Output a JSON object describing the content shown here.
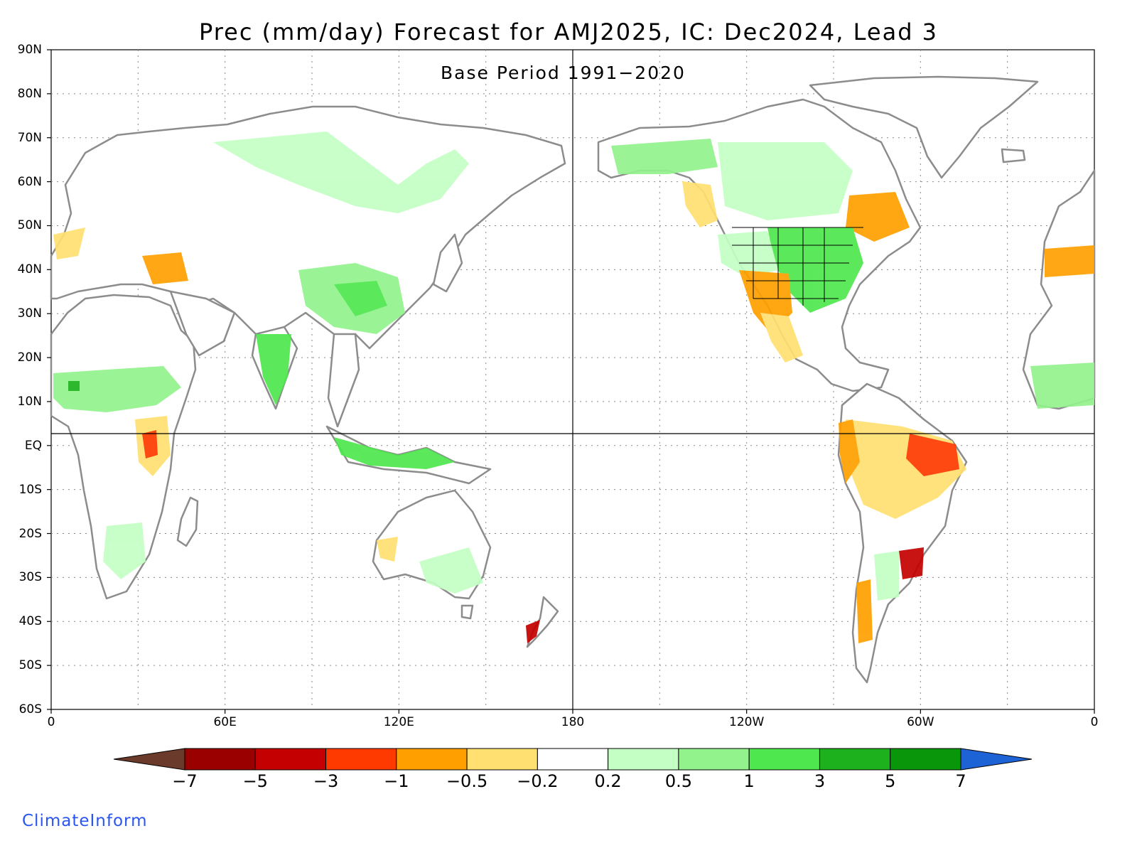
{
  "title": "Prec (mm/day) Forecast for AMJ2025, IC: Dec2024, Lead 3",
  "subtitle": "Base Period 1991−2020",
  "brand": "ClimateInform",
  "map": {
    "projection": "equirectangular",
    "lon_range": [
      0,
      360
    ],
    "lat_range": [
      -60,
      90
    ],
    "lat_ticks": [
      "90N",
      "80N",
      "70N",
      "60N",
      "50N",
      "40N",
      "30N",
      "20N",
      "10N",
      "EQ",
      "10S",
      "20S",
      "30S",
      "40S",
      "50S",
      "60S"
    ],
    "lon_ticks": [
      "0",
      "60E",
      "120E",
      "180",
      "120W",
      "60W",
      "0"
    ],
    "grid": "dotted",
    "reference_lines": [
      "equator",
      "dateline"
    ]
  },
  "colorbar": {
    "labels": [
      "−7",
      "−5",
      "−3",
      "−1",
      "−0.5",
      "−0.2",
      "0.2",
      "0.5",
      "1",
      "3",
      "5",
      "7"
    ],
    "colors": [
      "#6b3a2a",
      "#9b0000",
      "#c40000",
      "#ff3a00",
      "#ff9f00",
      "#ffe070",
      "#ffffff",
      "#c4ffc4",
      "#92f28c",
      "#4ee84e",
      "#1db21d",
      "#0a960a",
      "#1e63d6"
    ]
  },
  "regions": [
    {
      "name": "north-america-wet",
      "level": "1"
    },
    {
      "name": "eastern-us-wet",
      "level": "3"
    },
    {
      "name": "brazil-dry",
      "level": "-3"
    },
    {
      "name": "southern-south-america-dry",
      "level": "-1"
    },
    {
      "name": "china-wet",
      "level": "1"
    },
    {
      "name": "india-wet",
      "level": "1"
    },
    {
      "name": "siberia-wet",
      "level": "0.5"
    },
    {
      "name": "africa-sahel-wet",
      "level": "1"
    },
    {
      "name": "east-africa-dry",
      "level": "-1"
    },
    {
      "name": "australia-mixed",
      "level": "0.5"
    },
    {
      "name": "mexico-dry",
      "level": "-0.5"
    }
  ]
}
